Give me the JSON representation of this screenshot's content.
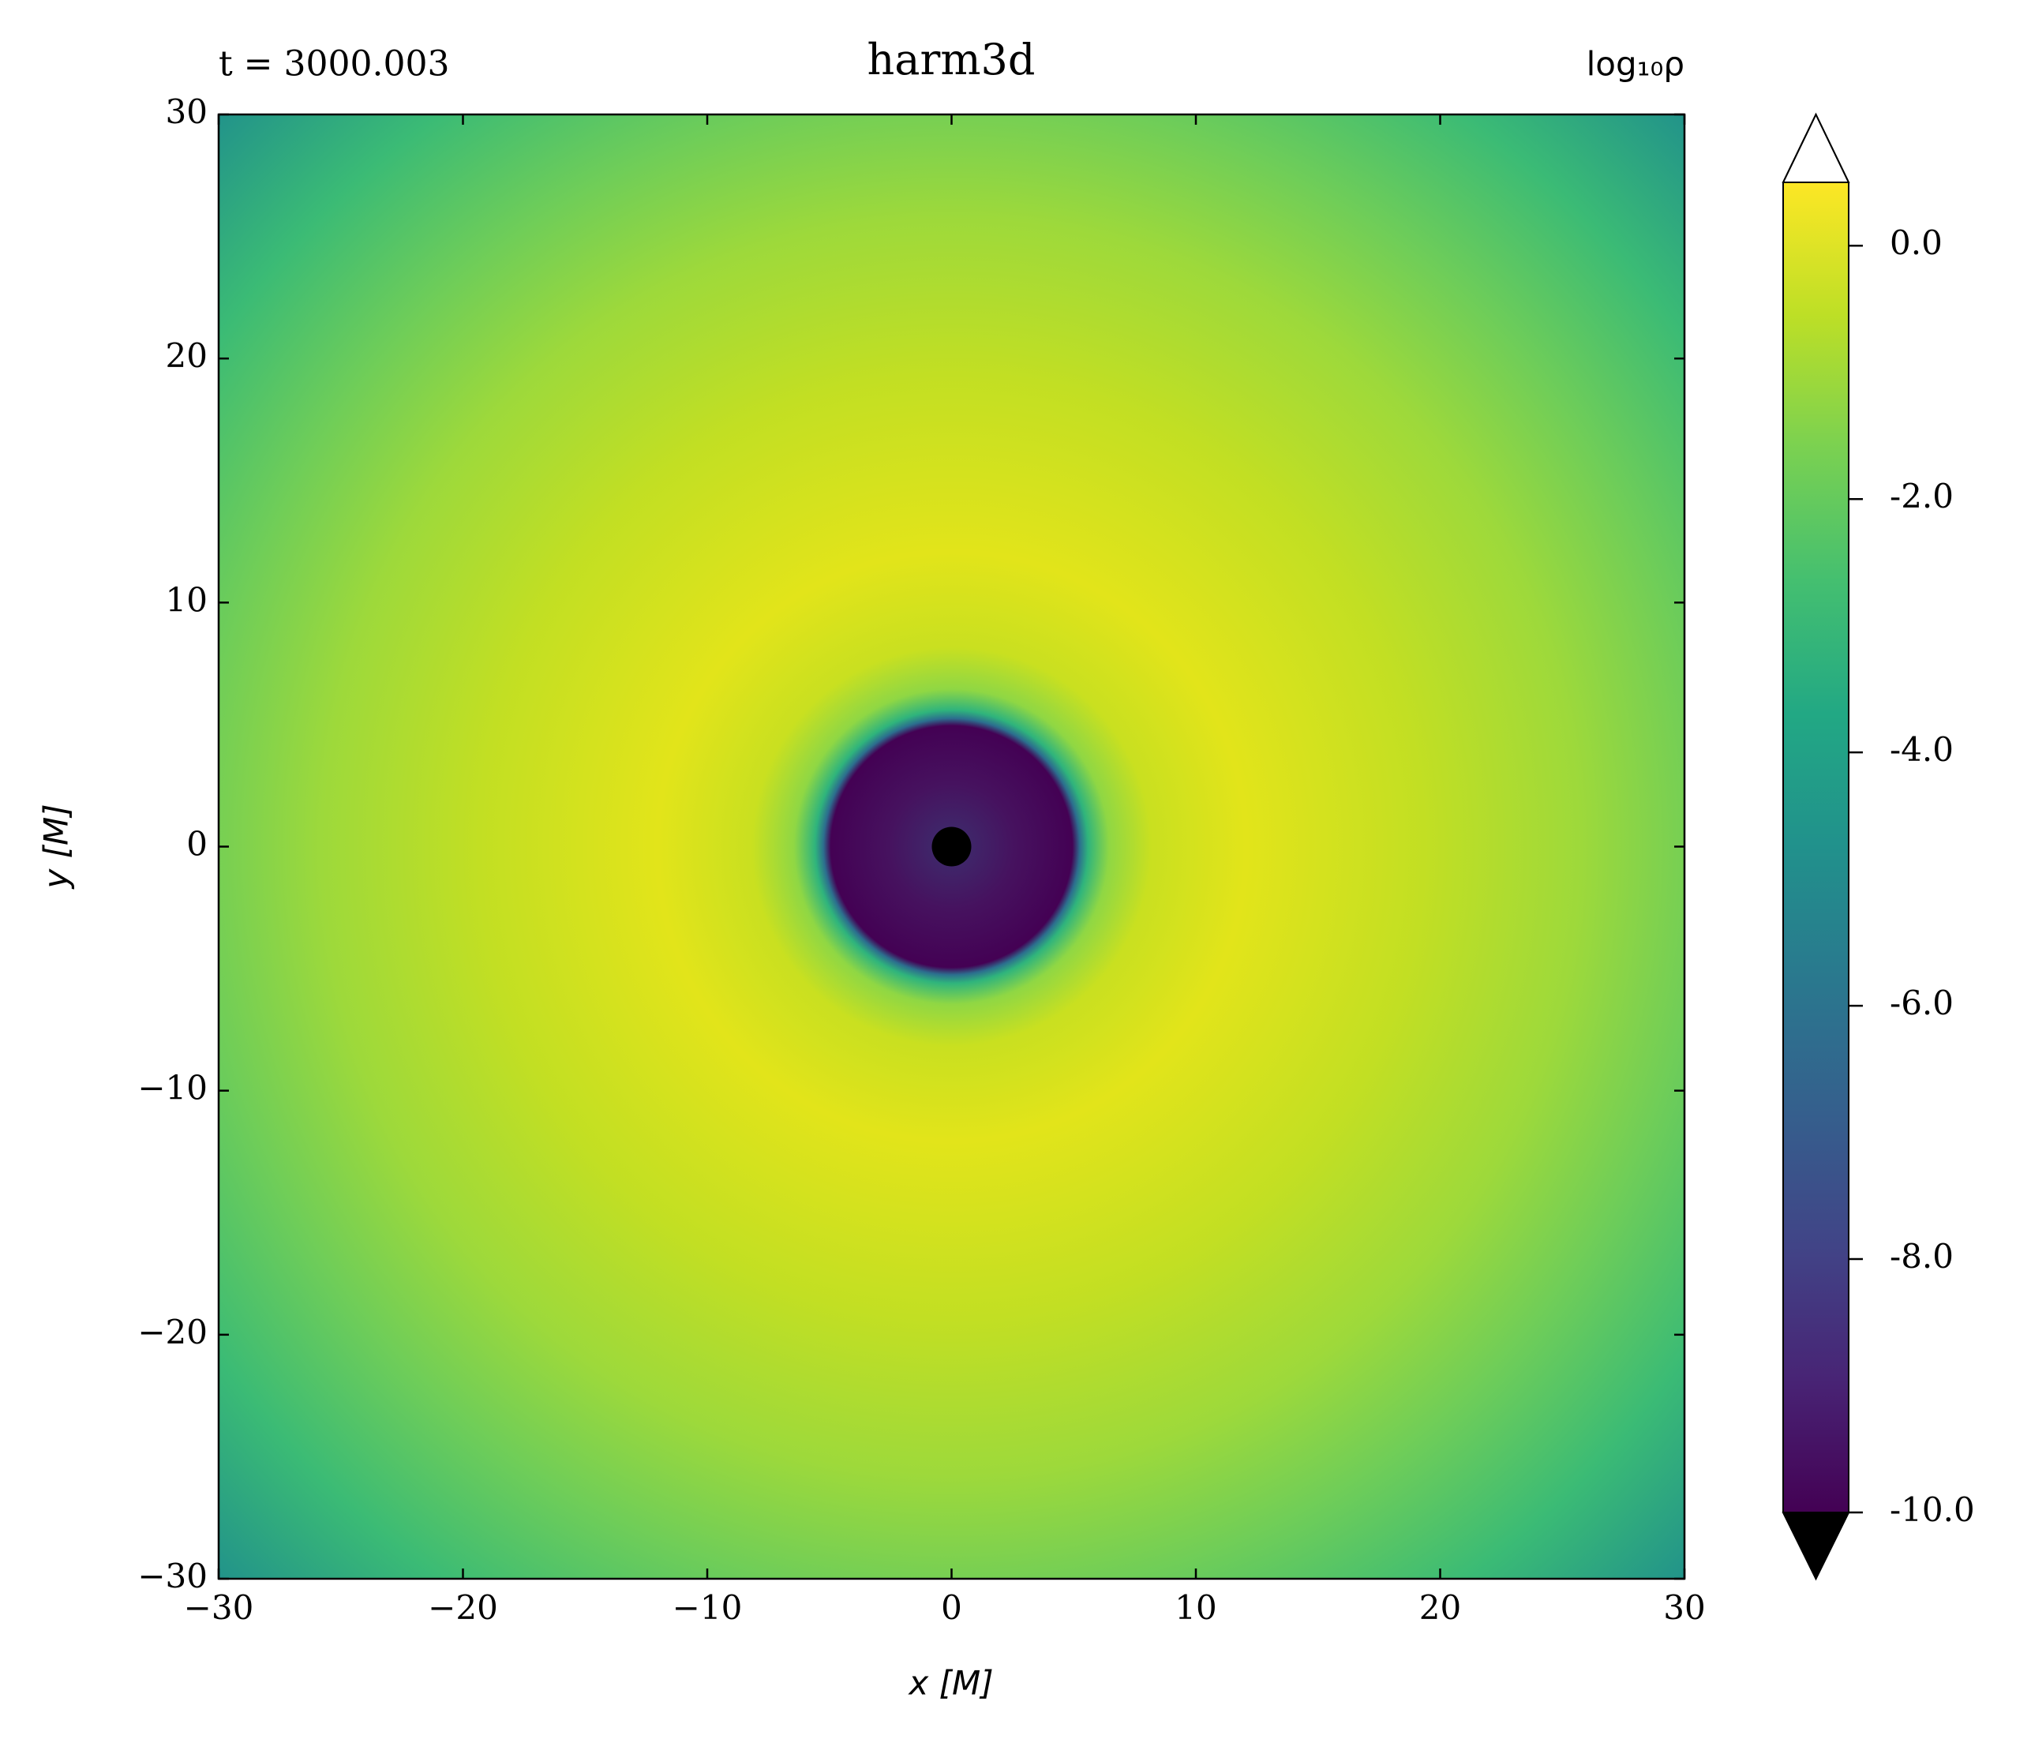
{
  "chart_data": {
    "type": "heatmap",
    "title": "harm3d",
    "annotation_left": "t = 3000.003",
    "colorbar_label": "log₁₀ρ",
    "xlabel": "x [M]",
    "ylabel": "y [M]",
    "colormap": "viridis",
    "xlim": [
      -30,
      30
    ],
    "ylim": [
      -30,
      30
    ],
    "xticks": [
      {
        "value": -30,
        "label": "−30"
      },
      {
        "value": -20,
        "label": "−20"
      },
      {
        "value": -10,
        "label": "−10"
      },
      0,
      10,
      20,
      30
    ],
    "yticks": [
      {
        "value": -30,
        "label": "−30"
      },
      {
        "value": -20,
        "label": "−20"
      },
      {
        "value": -10,
        "label": "−10"
      },
      0,
      10,
      20,
      30
    ],
    "clim": [
      -10,
      0.5
    ],
    "cticks": [
      {
        "value": 0,
        "label": "0.0"
      },
      {
        "value": -2,
        "label": "-2.0"
      },
      {
        "value": -4,
        "label": "-4.0"
      },
      {
        "value": -6,
        "label": "-6.0"
      },
      {
        "value": -8,
        "label": "-8.0"
      },
      {
        "value": -10,
        "label": "-10.0"
      }
    ]
  }
}
